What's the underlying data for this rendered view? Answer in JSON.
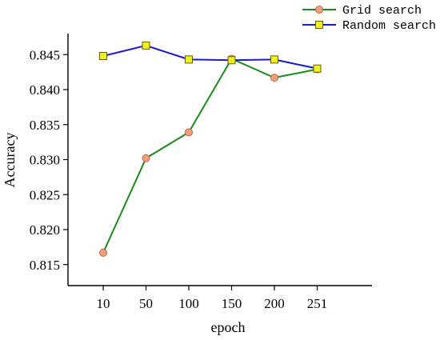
{
  "chart_data": {
    "type": "line",
    "title": "",
    "xlabel": "epoch",
    "ylabel": "Accuracy",
    "categories": [
      "10",
      "50",
      "100",
      "150",
      "200",
      "251"
    ],
    "ylim": [
      0.812,
      0.848
    ],
    "yticks": [
      "0.815",
      "0.820",
      "0.825",
      "0.830",
      "0.835",
      "0.840",
      "0.845"
    ],
    "grid": false,
    "legend_position": "top-right",
    "series": [
      {
        "name": "Grid search",
        "values": [
          0.8167,
          0.8302,
          0.8339,
          0.8444,
          0.8417,
          0.8429
        ],
        "line_color": "#1a8a1a",
        "marker": "circle",
        "marker_fill": "#f0a080",
        "marker_stroke": "#c06040"
      },
      {
        "name": "Random search",
        "values": [
          0.8448,
          0.8463,
          0.8443,
          0.8442,
          0.8443,
          0.843
        ],
        "line_color": "#1a1ad0",
        "marker": "square",
        "marker_fill": "#f0f020",
        "marker_stroke": "#606000"
      }
    ]
  }
}
